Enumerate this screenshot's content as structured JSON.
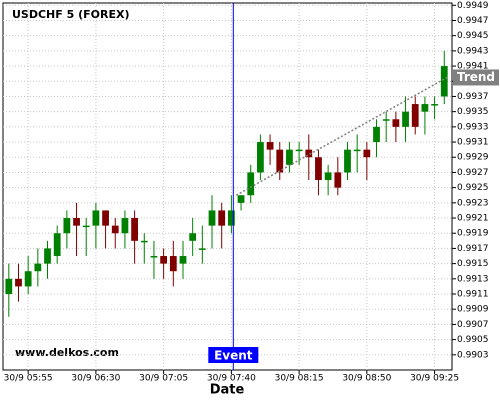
{
  "chart_data": {
    "type": "candlestick",
    "title": "USDCHF 5 (FOREX)",
    "x_label": "Date",
    "watermark": "www.delkos.com",
    "up_color": "#008000",
    "down_color": "#800000",
    "open": [
      0.9911,
      0.9913,
      0.9912,
      0.9914,
      0.9915,
      0.9916,
      0.9919,
      0.9921,
      0.992,
      0.992,
      0.9922,
      0.992,
      0.9919,
      0.9921,
      0.9918,
      0.9916,
      0.9916,
      0.9916,
      0.9915,
      0.9918,
      0.9917,
      0.992,
      0.9922,
      0.992,
      0.9923,
      0.9924,
      0.9927,
      0.9931,
      0.993,
      0.9928,
      0.993,
      0.993,
      0.9929,
      0.9926,
      0.9927,
      0.9927,
      0.993,
      0.993,
      0.9931,
      0.9934,
      0.9934,
      0.9933,
      0.9936,
      0.9935,
      0.9936,
      0.9937
    ],
    "high": [
      0.9915,
      0.9915,
      0.9916,
      0.9917,
      0.9918,
      0.992,
      0.9922,
      0.9923,
      0.9921,
      0.9923,
      0.9922,
      0.9921,
      0.9922,
      0.9922,
      0.9919,
      0.9918,
      0.9917,
      0.9918,
      0.9918,
      0.9921,
      0.992,
      0.9924,
      0.9923,
      0.9924,
      0.9924,
      0.9928,
      0.9932,
      0.9932,
      0.9931,
      0.9931,
      0.9931,
      0.9932,
      0.993,
      0.9928,
      0.9929,
      0.9931,
      0.9932,
      0.9931,
      0.9934,
      0.9935,
      0.9935,
      0.9937,
      0.9937,
      0.9937,
      0.9937,
      0.9943
    ],
    "low": [
      0.9908,
      0.991,
      0.9911,
      0.9912,
      0.9913,
      0.9915,
      0.9917,
      0.9916,
      0.9916,
      0.9917,
      0.9917,
      0.9917,
      0.9917,
      0.9915,
      0.9915,
      0.9913,
      0.9913,
      0.9912,
      0.9913,
      0.9916,
      0.9915,
      0.9917,
      0.9917,
      0.9919,
      0.9922,
      0.9923,
      0.9926,
      0.9928,
      0.9926,
      0.9927,
      0.9928,
      0.9926,
      0.9924,
      0.9924,
      0.9924,
      0.9926,
      0.9927,
      0.9926,
      0.9929,
      0.9931,
      0.9931,
      0.9931,
      0.9932,
      0.9932,
      0.9934,
      0.9936
    ],
    "close": [
      0.9913,
      0.9912,
      0.9914,
      0.9915,
      0.9917,
      0.9919,
      0.9921,
      0.992,
      0.992,
      0.9922,
      0.992,
      0.9919,
      0.9921,
      0.9918,
      0.9918,
      0.9916,
      0.9915,
      0.9914,
      0.9916,
      0.9919,
      0.9917,
      0.9922,
      0.992,
      0.9922,
      0.9924,
      0.9927,
      0.9931,
      0.993,
      0.9927,
      0.993,
      0.993,
      0.9929,
      0.9926,
      0.9927,
      0.9925,
      0.993,
      0.993,
      0.9929,
      0.9933,
      0.9934,
      0.9933,
      0.9935,
      0.9933,
      0.9936,
      0.9936,
      0.9941
    ],
    "xlim": [
      -0.6,
      45.8
    ],
    "xticks": [
      {
        "value": 2,
        "label": "30/9 05:55"
      },
      {
        "value": 9,
        "label": "30/9 06:30"
      },
      {
        "value": 16,
        "label": "30/9 07:05"
      },
      {
        "value": 23,
        "label": "30/9 07:40"
      },
      {
        "value": 30,
        "label": "30/9 08:15"
      },
      {
        "value": 37,
        "label": "30/9 08:50"
      },
      {
        "value": 44,
        "label": "30/9 09:25"
      }
    ],
    "ylim": [
      0.9901,
      0.99493
    ],
    "yticks": [
      0.9903,
      0.9905,
      0.9907,
      0.9909,
      0.9911,
      0.9913,
      0.9915,
      0.9917,
      0.9919,
      0.9921,
      0.9923,
      0.9925,
      0.9927,
      0.9929,
      0.9931,
      0.9933,
      0.9935,
      0.9937,
      0.9939,
      0.9941,
      0.9943,
      0.9945,
      0.9947,
      0.9949
    ],
    "grid": true,
    "event": {
      "label": "Event",
      "x": 23.2,
      "color": "#0000ff"
    },
    "trend": {
      "label": "Trend",
      "x": [
        23.5,
        45.3
      ],
      "y": [
        0.9924,
        0.99395
      ],
      "color": "#808080"
    }
  }
}
